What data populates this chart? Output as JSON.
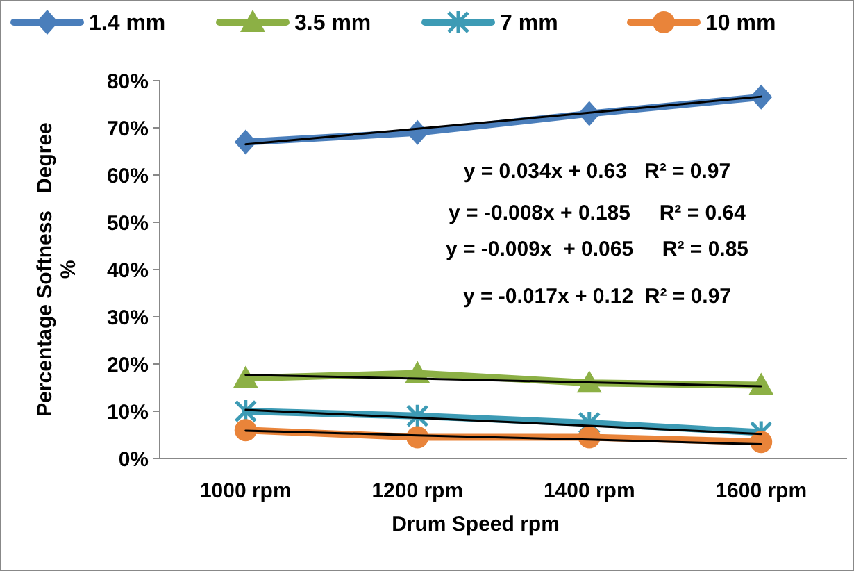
{
  "chart_data": {
    "type": "line",
    "xlabel": "Drum Speed rpm",
    "ylabel": "Percentage Softness   Degree\n%",
    "categories": [
      "1000 rpm",
      "1200 rpm",
      "1400 rpm",
      "1600 rpm"
    ],
    "series": [
      {
        "name": "1.4 mm",
        "color": "#4a7ebb",
        "marker": "diamond",
        "values": [
          67,
          69,
          73,
          76.5
        ]
      },
      {
        "name": "3.5 mm",
        "color": "#8cb045",
        "marker": "triangle",
        "values": [
          17,
          18,
          16,
          15.5
        ]
      },
      {
        "name": "7 mm",
        "color": "#3d9bb5",
        "marker": "cross",
        "values": [
          10,
          9,
          7.5,
          5.5
        ]
      },
      {
        "name": "10 mm",
        "color": "#e9843a",
        "marker": "circle",
        "values": [
          6,
          4.5,
          4.5,
          3.5
        ]
      },
      {
        "color": "#000000",
        "marker": "none",
        "values": [
          66.5,
          69.8,
          73.2,
          76.6
        ]
      },
      {
        "color": "#000000",
        "marker": "none",
        "values": [
          17.7,
          16.9,
          16.1,
          15.3
        ]
      },
      {
        "color": "#000000",
        "marker": "none",
        "values": [
          10.3,
          8.6,
          6.9,
          5.2
        ]
      },
      {
        "color": "#000000",
        "marker": "none",
        "values": [
          5.9,
          4.9,
          4,
          3
        ]
      }
    ],
    "ylim": [
      0,
      80
    ],
    "yticks": [
      {
        "value": 0,
        "label": "0%"
      },
      {
        "value": 10,
        "label": "10%"
      },
      {
        "value": 20,
        "label": "20%"
      },
      {
        "value": 30,
        "label": "30%"
      },
      {
        "value": 40,
        "label": "40%"
      },
      {
        "value": 50,
        "label": "50%"
      },
      {
        "value": 60,
        "label": "60%"
      },
      {
        "value": 70,
        "label": "70%"
      },
      {
        "value": 80,
        "label": "80%"
      }
    ],
    "grid": false,
    "legend": "top",
    "annotations": [
      "y = 0.034x + 0.63   R² = 0.97",
      "y = -0.008x + 0.185     R² = 0.64",
      "y = -0.009x  + 0.065     R² = 0.85",
      "y = -0.017x + 0.12  R² = 0.97"
    ]
  }
}
